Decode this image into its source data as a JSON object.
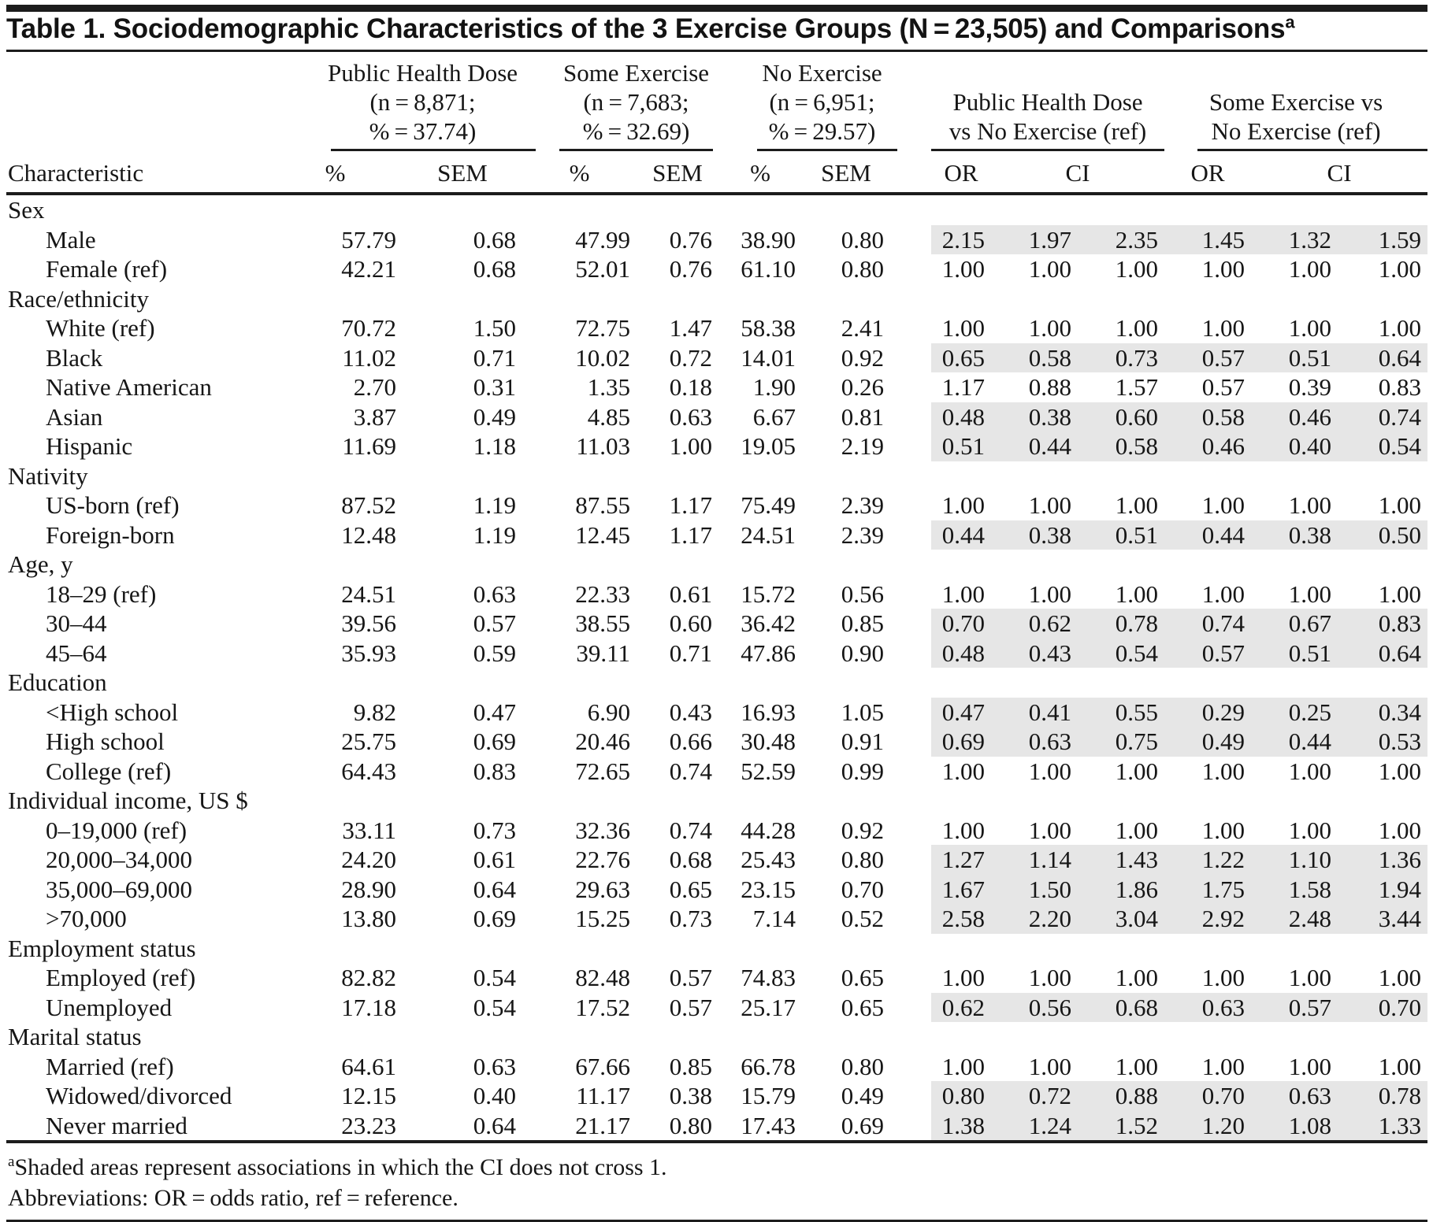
{
  "title": {
    "text": "Table 1. Sociodemographic Characteristics of the 3 Exercise Groups (N = 23,505) and Comparisons",
    "superscript": "a"
  },
  "header": {
    "characteristic_label": "Characteristic",
    "groups": [
      {
        "lines": [
          "Public Health Dose",
          "(n = 8,871;",
          "% = 37.74)"
        ],
        "sub": [
          "%",
          "SEM"
        ]
      },
      {
        "lines": [
          "Some Exercise",
          "(n = 7,683;",
          "% = 32.69)"
        ],
        "sub": [
          "%",
          "SEM"
        ]
      },
      {
        "lines": [
          "No Exercise",
          "(n = 6,951;",
          "% = 29.57)"
        ],
        "sub": [
          "%",
          "SEM"
        ]
      }
    ],
    "comparisons": [
      {
        "lines": [
          "Public Health Dose",
          "vs No Exercise (ref)"
        ],
        "sub": [
          "OR",
          "CI"
        ]
      },
      {
        "lines": [
          "Some Exercise vs",
          "No Exercise (ref)"
        ],
        "sub": [
          "OR",
          "CI"
        ]
      }
    ]
  },
  "column_keys": [
    "phd-pct",
    "phd-sem",
    "some-pct",
    "some-sem",
    "none-pct",
    "none-sem",
    "phd-vs-none-or",
    "phd-vs-none-ci-low",
    "phd-vs-none-ci-high",
    "some-vs-none-or",
    "some-vs-none-ci-low",
    "some-vs-none-ci-high"
  ],
  "rows": [
    {
      "type": "category",
      "label": "Sex"
    },
    {
      "type": "data",
      "label": "Male",
      "shaded": true,
      "values": [
        "57.79",
        "0.68",
        "47.99",
        "0.76",
        "38.90",
        "0.80",
        "2.15",
        "1.97",
        "2.35",
        "1.45",
        "1.32",
        "1.59"
      ]
    },
    {
      "type": "data",
      "label": "Female (ref)",
      "shaded": false,
      "values": [
        "42.21",
        "0.68",
        "52.01",
        "0.76",
        "61.10",
        "0.80",
        "1.00",
        "1.00",
        "1.00",
        "1.00",
        "1.00",
        "1.00"
      ]
    },
    {
      "type": "category",
      "label": "Race/ethnicity"
    },
    {
      "type": "data",
      "label": "White (ref)",
      "shaded": false,
      "values": [
        "70.72",
        "1.50",
        "72.75",
        "1.47",
        "58.38",
        "2.41",
        "1.00",
        "1.00",
        "1.00",
        "1.00",
        "1.00",
        "1.00"
      ]
    },
    {
      "type": "data",
      "label": "Black",
      "shaded": true,
      "values": [
        "11.02",
        "0.71",
        "10.02",
        "0.72",
        "14.01",
        "0.92",
        "0.65",
        "0.58",
        "0.73",
        "0.57",
        "0.51",
        "0.64"
      ]
    },
    {
      "type": "data",
      "label": "Native American",
      "shaded": false,
      "values": [
        "2.70",
        "0.31",
        "1.35",
        "0.18",
        "1.90",
        "0.26",
        "1.17",
        "0.88",
        "1.57",
        "0.57",
        "0.39",
        "0.83"
      ]
    },
    {
      "type": "data",
      "label": "Asian",
      "shaded": true,
      "values": [
        "3.87",
        "0.49",
        "4.85",
        "0.63",
        "6.67",
        "0.81",
        "0.48",
        "0.38",
        "0.60",
        "0.58",
        "0.46",
        "0.74"
      ]
    },
    {
      "type": "data",
      "label": "Hispanic",
      "shaded": true,
      "values": [
        "11.69",
        "1.18",
        "11.03",
        "1.00",
        "19.05",
        "2.19",
        "0.51",
        "0.44",
        "0.58",
        "0.46",
        "0.40",
        "0.54"
      ]
    },
    {
      "type": "category",
      "label": "Nativity"
    },
    {
      "type": "data",
      "label": "US-born (ref)",
      "shaded": false,
      "values": [
        "87.52",
        "1.19",
        "87.55",
        "1.17",
        "75.49",
        "2.39",
        "1.00",
        "1.00",
        "1.00",
        "1.00",
        "1.00",
        "1.00"
      ]
    },
    {
      "type": "data",
      "label": "Foreign-born",
      "shaded": true,
      "values": [
        "12.48",
        "1.19",
        "12.45",
        "1.17",
        "24.51",
        "2.39",
        "0.44",
        "0.38",
        "0.51",
        "0.44",
        "0.38",
        "0.50"
      ]
    },
    {
      "type": "category",
      "label": "Age, y"
    },
    {
      "type": "data",
      "label": "18–29 (ref)",
      "shaded": false,
      "values": [
        "24.51",
        "0.63",
        "22.33",
        "0.61",
        "15.72",
        "0.56",
        "1.00",
        "1.00",
        "1.00",
        "1.00",
        "1.00",
        "1.00"
      ]
    },
    {
      "type": "data",
      "label": "30–44",
      "shaded": true,
      "values": [
        "39.56",
        "0.57",
        "38.55",
        "0.60",
        "36.42",
        "0.85",
        "0.70",
        "0.62",
        "0.78",
        "0.74",
        "0.67",
        "0.83"
      ]
    },
    {
      "type": "data",
      "label": "45–64",
      "shaded": true,
      "values": [
        "35.93",
        "0.59",
        "39.11",
        "0.71",
        "47.86",
        "0.90",
        "0.48",
        "0.43",
        "0.54",
        "0.57",
        "0.51",
        "0.64"
      ]
    },
    {
      "type": "category",
      "label": "Education"
    },
    {
      "type": "data",
      "label": "<High school",
      "shaded": true,
      "values": [
        "9.82",
        "0.47",
        "6.90",
        "0.43",
        "16.93",
        "1.05",
        "0.47",
        "0.41",
        "0.55",
        "0.29",
        "0.25",
        "0.34"
      ]
    },
    {
      "type": "data",
      "label": "High school",
      "shaded": true,
      "values": [
        "25.75",
        "0.69",
        "20.46",
        "0.66",
        "30.48",
        "0.91",
        "0.69",
        "0.63",
        "0.75",
        "0.49",
        "0.44",
        "0.53"
      ]
    },
    {
      "type": "data",
      "label": "College (ref)",
      "shaded": false,
      "values": [
        "64.43",
        "0.83",
        "72.65",
        "0.74",
        "52.59",
        "0.99",
        "1.00",
        "1.00",
        "1.00",
        "1.00",
        "1.00",
        "1.00"
      ]
    },
    {
      "type": "category",
      "label": "Individual income, US $"
    },
    {
      "type": "data",
      "label": "0–19,000 (ref)",
      "shaded": false,
      "values": [
        "33.11",
        "0.73",
        "32.36",
        "0.74",
        "44.28",
        "0.92",
        "1.00",
        "1.00",
        "1.00",
        "1.00",
        "1.00",
        "1.00"
      ]
    },
    {
      "type": "data",
      "label": "20,000–34,000",
      "shaded": true,
      "values": [
        "24.20",
        "0.61",
        "22.76",
        "0.68",
        "25.43",
        "0.80",
        "1.27",
        "1.14",
        "1.43",
        "1.22",
        "1.10",
        "1.36"
      ]
    },
    {
      "type": "data",
      "label": "35,000–69,000",
      "shaded": true,
      "values": [
        "28.90",
        "0.64",
        "29.63",
        "0.65",
        "23.15",
        "0.70",
        "1.67",
        "1.50",
        "1.86",
        "1.75",
        "1.58",
        "1.94"
      ]
    },
    {
      "type": "data",
      "label": ">70,000",
      "shaded": true,
      "values": [
        "13.80",
        "0.69",
        "15.25",
        "0.73",
        "7.14",
        "0.52",
        "2.58",
        "2.20",
        "3.04",
        "2.92",
        "2.48",
        "3.44"
      ]
    },
    {
      "type": "category",
      "label": "Employment status"
    },
    {
      "type": "data",
      "label": "Employed (ref)",
      "shaded": false,
      "values": [
        "82.82",
        "0.54",
        "82.48",
        "0.57",
        "74.83",
        "0.65",
        "1.00",
        "1.00",
        "1.00",
        "1.00",
        "1.00",
        "1.00"
      ]
    },
    {
      "type": "data",
      "label": "Unemployed",
      "shaded": true,
      "values": [
        "17.18",
        "0.54",
        "17.52",
        "0.57",
        "25.17",
        "0.65",
        "0.62",
        "0.56",
        "0.68",
        "0.63",
        "0.57",
        "0.70"
      ]
    },
    {
      "type": "category",
      "label": "Marital status"
    },
    {
      "type": "data",
      "label": "Married (ref)",
      "shaded": false,
      "values": [
        "64.61",
        "0.63",
        "67.66",
        "0.85",
        "66.78",
        "0.80",
        "1.00",
        "1.00",
        "1.00",
        "1.00",
        "1.00",
        "1.00"
      ]
    },
    {
      "type": "data",
      "label": "Widowed/divorced",
      "shaded": true,
      "values": [
        "12.15",
        "0.40",
        "11.17",
        "0.38",
        "15.79",
        "0.49",
        "0.80",
        "0.72",
        "0.88",
        "0.70",
        "0.63",
        "0.78"
      ]
    },
    {
      "type": "data",
      "label": "Never married",
      "shaded": true,
      "values": [
        "23.23",
        "0.64",
        "21.17",
        "0.80",
        "17.43",
        "0.69",
        "1.38",
        "1.24",
        "1.52",
        "1.20",
        "1.08",
        "1.33"
      ]
    }
  ],
  "footnotes": {
    "note_marker": "a",
    "note_text": "Shaded areas represent associations in which the CI does not cross 1.",
    "abbreviations": "Abbreviations: OR = odds ratio, ref = reference."
  },
  "colors": {
    "shading": "#e6e6e6",
    "rule": "#1c1c1c"
  }
}
